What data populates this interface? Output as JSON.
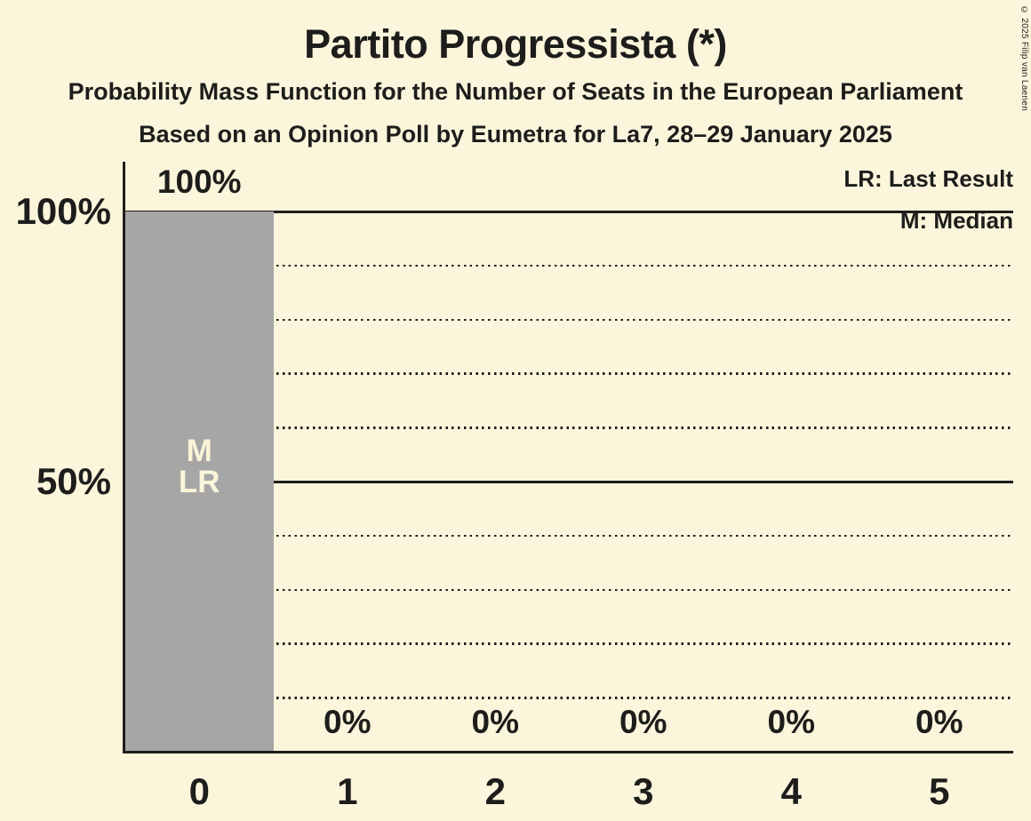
{
  "copyright": "© 2025 Filip van Laenen",
  "chart_data": {
    "type": "bar",
    "title": "Partito Progressista (*)",
    "subtitle": "Probability Mass Function for the Number of Seats in the European Parliament",
    "source_line": "Based on an Opinion Poll by Eumetra for La7, 28–29 January 2025",
    "xlabel": "",
    "ylabel": "",
    "categories": [
      "0",
      "1",
      "2",
      "3",
      "4",
      "5"
    ],
    "values_pct": [
      100,
      0,
      0,
      0,
      0,
      0
    ],
    "bar_labels": [
      "100%",
      "0%",
      "0%",
      "0%",
      "0%",
      "0%"
    ],
    "ylim": [
      0,
      100
    ],
    "yticks": [
      {
        "label": "100%",
        "pct": 100
      },
      {
        "label": "50%",
        "pct": 50
      }
    ],
    "solid_gridlines_pct": [
      100,
      50
    ],
    "dotted_gridlines_pct": [
      90,
      80,
      70,
      60,
      40,
      30,
      20,
      10
    ],
    "grid": true,
    "legend_position": "top-right",
    "legend": [
      "LR: Last Result",
      "M: Median"
    ],
    "annotations": {
      "bar_index": 0,
      "lines": [
        "M",
        "LR"
      ]
    },
    "colors": {
      "background": "#FBF5DC",
      "bar": "#A6A6A6",
      "text": "#1D1D1B",
      "bar_annotation_text": "#FAF4D9"
    }
  }
}
